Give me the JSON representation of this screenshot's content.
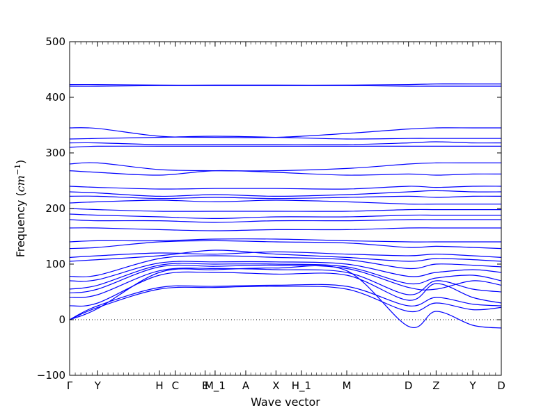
{
  "chart_data": {
    "type": "line",
    "title": "",
    "xlabel": "Wave vector",
    "ylabel": "Frequency (cm⁻¹)",
    "ylabel_main": "Frequency (",
    "ylabel_unit": "cm",
    "ylabel_exp": "−1",
    "ylabel_close": ")",
    "ylim": [
      -100,
      500
    ],
    "yticks": [
      -100,
      0,
      100,
      200,
      300,
      400,
      500
    ],
    "xlim": [
      0,
      1
    ],
    "grid": false,
    "zero_reference_line": {
      "y": 0,
      "style": "dotted"
    },
    "line_color": "#0000ff",
    "high_symmetry_points": [
      {
        "label": "Γ",
        "x": 0.0
      },
      {
        "label": "Y",
        "x": 0.065
      },
      {
        "label": "H",
        "x": 0.208
      },
      {
        "label": "C",
        "x": 0.245
      },
      {
        "label": "E",
        "x": 0.314
      },
      {
        "label": "M_1",
        "x": 0.337
      },
      {
        "label": "A",
        "x": 0.408
      },
      {
        "label": "X",
        "x": 0.478
      },
      {
        "label": "H_1",
        "x": 0.537
      },
      {
        "label": "M",
        "x": 0.642
      },
      {
        "label": "D",
        "x": 0.785
      },
      {
        "label": "Z",
        "x": 0.849
      },
      {
        "label": "Y",
        "x": 0.934
      },
      {
        "label": "D",
        "x": 1.0
      }
    ],
    "series": [
      {
        "x": [
          0,
          0.065,
          0.208,
          0.337,
          0.478,
          0.642,
          0.785,
          0.849,
          0.934,
          1.0
        ],
        "values": [
          0,
          20,
          85,
          90,
          93,
          88,
          -12,
          15,
          -10,
          -15
        ]
      },
      {
        "x": [
          0,
          0.065,
          0.208,
          0.337,
          0.478,
          0.642,
          0.785,
          0.849,
          0.934,
          1.0
        ],
        "values": [
          0,
          22,
          55,
          58,
          60,
          55,
          15,
          30,
          18,
          22
        ]
      },
      {
        "x": [
          0,
          0.065,
          0.208,
          0.337,
          0.478,
          0.642,
          0.785,
          0.849,
          0.934,
          1.0
        ],
        "values": [
          0,
          25,
          58,
          60,
          62,
          60,
          25,
          40,
          28,
          25
        ]
      },
      {
        "x": [
          0,
          0.065,
          0.208,
          0.337,
          0.478,
          0.642,
          0.785,
          0.849,
          0.934,
          1.0
        ],
        "values": [
          25,
          30,
          80,
          85,
          82,
          80,
          35,
          65,
          40,
          30
        ]
      },
      {
        "x": [
          0,
          0.065,
          0.208,
          0.337,
          0.478,
          0.642,
          0.785,
          0.849,
          0.934,
          1.0
        ],
        "values": [
          40,
          45,
          88,
          92,
          90,
          85,
          45,
          70,
          55,
          50
        ]
      },
      {
        "x": [
          0,
          0.065,
          0.208,
          0.337,
          0.478,
          0.642,
          0.785,
          0.849,
          0.934,
          1.0
        ],
        "values": [
          48,
          55,
          95,
          96,
          98,
          92,
          58,
          55,
          70,
          62
        ]
      },
      {
        "x": [
          0,
          0.065,
          0.208,
          0.337,
          0.478,
          0.642,
          0.785,
          0.849,
          0.934,
          1.0
        ],
        "values": [
          55,
          62,
          98,
          100,
          100,
          95,
          65,
          75,
          80,
          70
        ]
      },
      {
        "x": [
          0,
          0.065,
          0.208,
          0.337,
          0.478,
          0.642,
          0.785,
          0.849,
          0.934,
          1.0
        ],
        "values": [
          70,
          72,
          102,
          104,
          104,
          100,
          78,
          85,
          90,
          85
        ]
      },
      {
        "x": [
          0,
          0.065,
          0.208,
          0.337,
          0.478,
          0.642,
          0.785,
          0.849,
          0.934,
          1.0
        ],
        "values": [
          78,
          80,
          110,
          115,
          112,
          108,
          92,
          100,
          98,
          95
        ]
      },
      {
        "x": [
          0,
          0.065,
          0.208,
          0.337,
          0.478,
          0.642,
          0.785,
          0.849,
          0.934,
          1.0
        ],
        "values": [
          105,
          108,
          115,
          125,
          118,
          112,
          105,
          110,
          108,
          105
        ]
      },
      {
        "x": [
          0,
          0.065,
          0.208,
          0.337,
          0.478,
          0.642,
          0.785,
          0.849,
          0.934,
          1.0
        ],
        "values": [
          112,
          115,
          120,
          118,
          122,
          118,
          115,
          118,
          115,
          112
        ]
      },
      {
        "x": [
          0,
          0.065,
          0.208,
          0.337,
          0.478,
          0.642,
          0.785,
          0.849,
          0.934,
          1.0
        ],
        "values": [
          128,
          130,
          140,
          142,
          140,
          138,
          130,
          132,
          130,
          128
        ]
      },
      {
        "x": [
          0,
          0.065,
          0.208,
          0.337,
          0.478,
          0.642,
          0.785,
          0.849,
          0.934,
          1.0
        ],
        "values": [
          140,
          142,
          142,
          145,
          145,
          142,
          140,
          140,
          140,
          140
        ]
      },
      {
        "x": [
          0,
          0.065,
          0.208,
          0.337,
          0.478,
          0.642,
          0.785,
          0.849,
          0.934,
          1.0
        ],
        "values": [
          165,
          165,
          162,
          160,
          162,
          162,
          165,
          165,
          165,
          165
        ]
      },
      {
        "x": [
          0,
          0.065,
          0.208,
          0.337,
          0.478,
          0.642,
          0.785,
          0.849,
          0.934,
          1.0
        ],
        "values": [
          180,
          178,
          178,
          175,
          178,
          178,
          180,
          180,
          180,
          180
        ]
      },
      {
        "x": [
          0,
          0.065,
          0.208,
          0.337,
          0.478,
          0.642,
          0.785,
          0.849,
          0.934,
          1.0
        ],
        "values": [
          190,
          188,
          185,
          182,
          185,
          185,
          188,
          188,
          188,
          188
        ]
      },
      {
        "x": [
          0,
          0.065,
          0.208,
          0.337,
          0.478,
          0.642,
          0.785,
          0.849,
          0.934,
          1.0
        ],
        "values": [
          200,
          198,
          195,
          195,
          195,
          195,
          198,
          198,
          198,
          198
        ]
      },
      {
        "x": [
          0,
          0.065,
          0.208,
          0.337,
          0.478,
          0.642,
          0.785,
          0.849,
          0.934,
          1.0
        ],
        "values": [
          210,
          212,
          215,
          212,
          215,
          212,
          208,
          208,
          208,
          208
        ]
      },
      {
        "x": [
          0,
          0.065,
          0.208,
          0.337,
          0.478,
          0.642,
          0.785,
          0.849,
          0.934,
          1.0
        ],
        "values": [
          222,
          222,
          218,
          220,
          218,
          220,
          222,
          220,
          222,
          222
        ]
      },
      {
        "x": [
          0,
          0.065,
          0.208,
          0.337,
          0.478,
          0.642,
          0.785,
          0.849,
          0.934,
          1.0
        ],
        "values": [
          230,
          228,
          222,
          225,
          222,
          225,
          230,
          232,
          230,
          230
        ]
      },
      {
        "x": [
          0,
          0.065,
          0.208,
          0.337,
          0.478,
          0.642,
          0.785,
          0.849,
          0.934,
          1.0
        ],
        "values": [
          240,
          238,
          235,
          236,
          236,
          235,
          240,
          238,
          240,
          240
        ]
      },
      {
        "x": [
          0,
          0.065,
          0.208,
          0.337,
          0.478,
          0.642,
          0.785,
          0.849,
          0.934,
          1.0
        ],
        "values": [
          268,
          265,
          260,
          268,
          265,
          260,
          262,
          260,
          262,
          262
        ]
      },
      {
        "x": [
          0,
          0.065,
          0.208,
          0.337,
          0.478,
          0.642,
          0.785,
          0.849,
          0.934,
          1.0
        ],
        "values": [
          280,
          282,
          270,
          268,
          268,
          272,
          280,
          282,
          282,
          282
        ]
      },
      {
        "x": [
          0,
          0.065,
          0.208,
          0.337,
          0.478,
          0.642,
          0.785,
          0.849,
          0.934,
          1.0
        ],
        "values": [
          310,
          312,
          312,
          312,
          312,
          312,
          312,
          312,
          312,
          312
        ]
      },
      {
        "x": [
          0,
          0.065,
          0.208,
          0.337,
          0.478,
          0.642,
          0.785,
          0.849,
          0.934,
          1.0
        ],
        "values": [
          318,
          318,
          315,
          315,
          315,
          315,
          318,
          320,
          318,
          318
        ]
      },
      {
        "x": [
          0,
          0.065,
          0.208,
          0.337,
          0.478,
          0.642,
          0.785,
          0.849,
          0.934,
          1.0
        ],
        "values": [
          325,
          326,
          328,
          330,
          328,
          325,
          326,
          326,
          326,
          326
        ]
      },
      {
        "x": [
          0,
          0.065,
          0.208,
          0.337,
          0.478,
          0.642,
          0.785,
          0.849,
          0.934,
          1.0
        ],
        "values": [
          345,
          344,
          330,
          328,
          328,
          335,
          343,
          345,
          345,
          345
        ]
      },
      {
        "x": [
          0,
          0.065,
          0.208,
          0.337,
          0.478,
          0.642,
          0.785,
          0.849,
          0.934,
          1.0
        ],
        "values": [
          420,
          420,
          421,
          421,
          421,
          421,
          420,
          420,
          420,
          420
        ]
      },
      {
        "x": [
          0,
          0.065,
          0.208,
          0.337,
          0.478,
          0.642,
          0.785,
          0.849,
          0.934,
          1.0
        ],
        "values": [
          423,
          423,
          422,
          422,
          422,
          422,
          423,
          424,
          424,
          424
        ]
      }
    ]
  }
}
